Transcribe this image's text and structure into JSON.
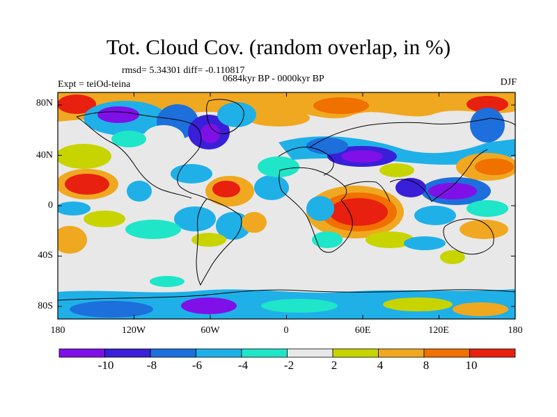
{
  "title": "Tot. Cloud Cov. (random overlap, in %)",
  "subtitle_stats": "rmsd= 5.34301 diff= -0.110817",
  "subtitle_period": "0684kyr BP - 0000kyr BP",
  "label_left": "Expt = teiOd-teina",
  "label_right": "DJF",
  "lat_labels": [
    "80N",
    "40N",
    "0",
    "40S",
    "80S"
  ],
  "lat_values": [
    80,
    40,
    0,
    -40,
    -80
  ],
  "lon_labels": [
    "180",
    "120W",
    "60W",
    "0",
    "60E",
    "120E",
    "180"
  ],
  "lon_values": [
    -180,
    -120,
    -60,
    0,
    60,
    120,
    180
  ],
  "colorbar": {
    "labels": [
      "-10",
      "-8",
      "-6",
      "-4",
      "-2",
      "2",
      "4",
      "8",
      "10"
    ],
    "colors": [
      "#7f10e8",
      "#3a1fd8",
      "#1d6fdc",
      "#1fb0e8",
      "#1fe6c8",
      "#e8e8e8",
      "#c8d400",
      "#f0a820",
      "#f07000",
      "#e82010"
    ]
  }
}
